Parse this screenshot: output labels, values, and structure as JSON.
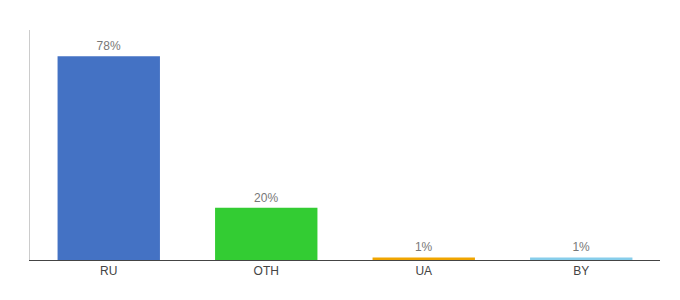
{
  "chart_data": {
    "type": "bar",
    "categories": [
      "RU",
      "OTH",
      "UA",
      "BY"
    ],
    "values": [
      78,
      20,
      1,
      1
    ],
    "value_labels": [
      "78%",
      "20%",
      "1%",
      "1%"
    ],
    "data_labels": true,
    "colors": [
      "#4472c4",
      "#33cc33",
      "#f0a500",
      "#87ceeb"
    ],
    "ylim": [
      0,
      88
    ],
    "yticks": [],
    "tick_labels": "x",
    "grid": false
  }
}
